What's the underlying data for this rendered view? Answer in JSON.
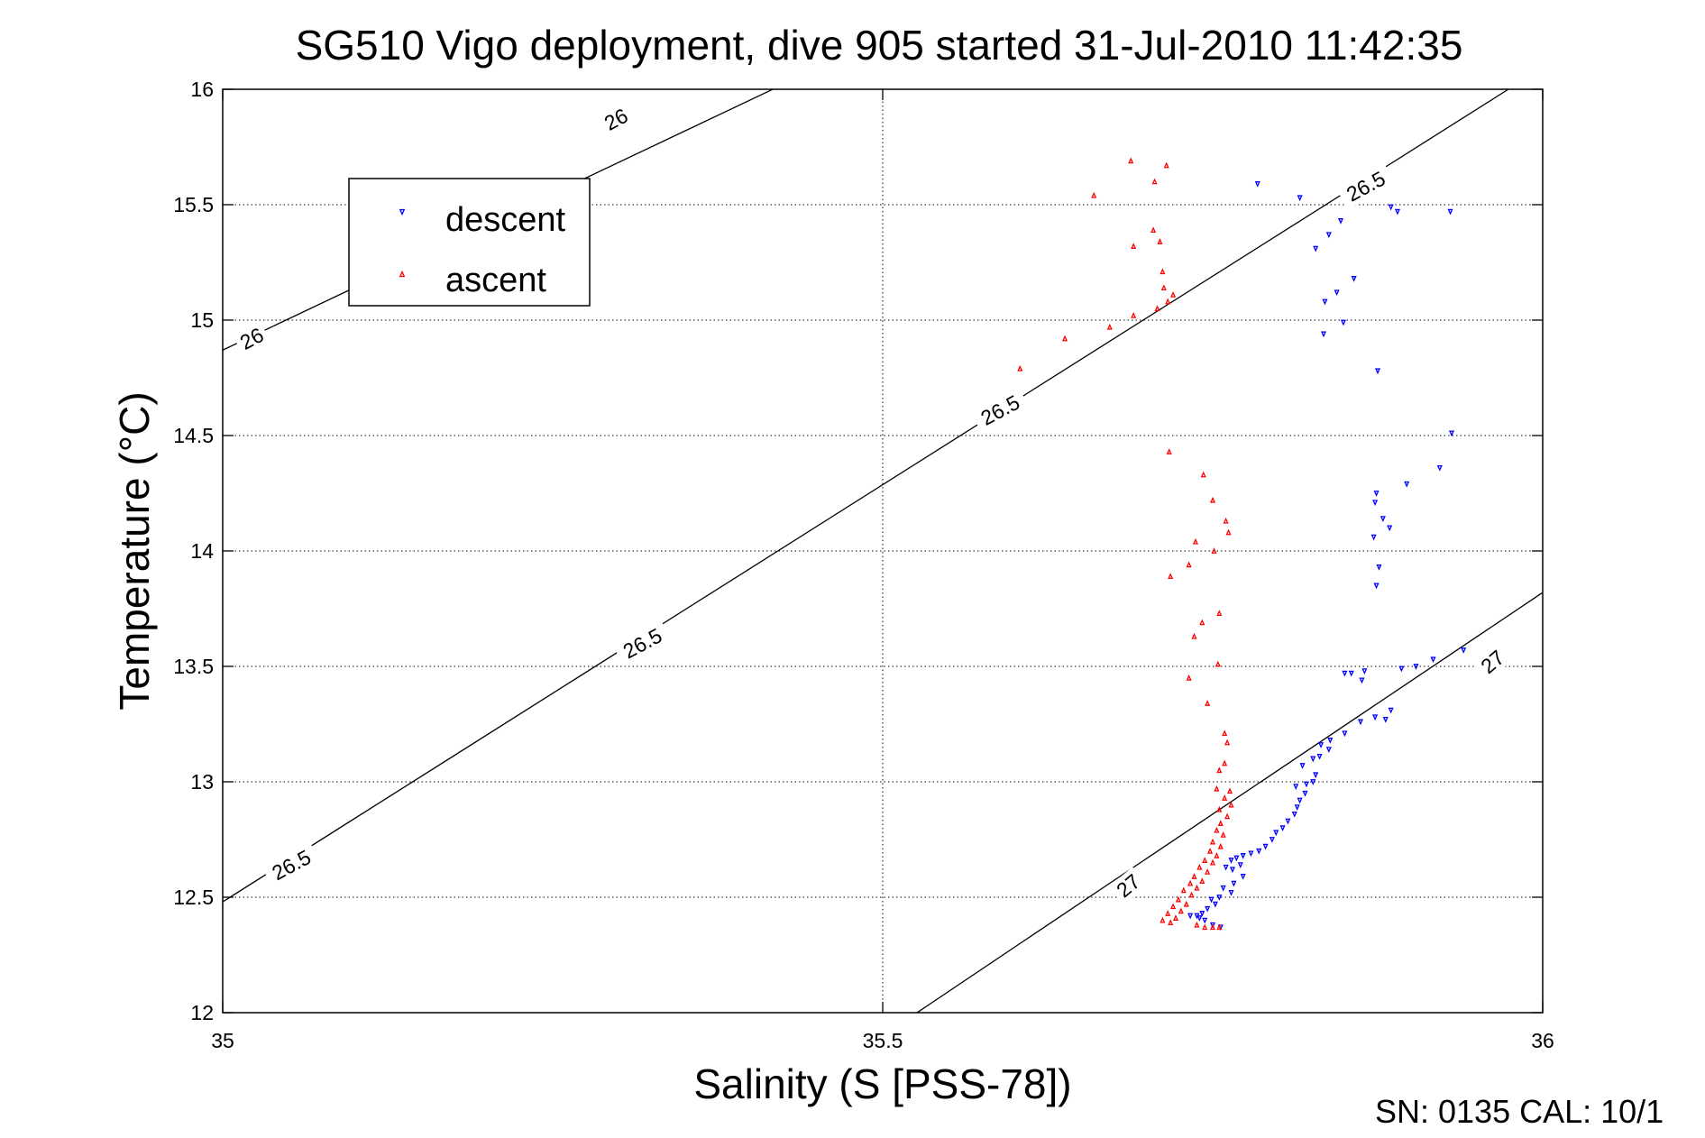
{
  "chart_data": {
    "type": "scatter",
    "title": "SG510 Vigo deployment, dive 905 started 31-Jul-2010 11:42:35",
    "xlabel": "Salinity (S [PSS-78])",
    "ylabel": "Temperature (°C)",
    "xlim": [
      35,
      36
    ],
    "ylim": [
      12,
      16
    ],
    "x_ticks": [
      35,
      35.5,
      36
    ],
    "y_ticks": [
      12,
      12.5,
      13,
      13.5,
      14,
      14.5,
      15,
      15.5,
      16
    ],
    "x_tick_labels": [
      "35",
      "35.5",
      "36"
    ],
    "y_tick_labels": [
      "12",
      "12.5",
      "13",
      "13.5",
      "14",
      "14.5",
      "15",
      "15.5",
      "16"
    ],
    "grid": true,
    "legend_position": "top-left",
    "footer": "SN: 0135  CAL: 10/1",
    "colors": {
      "descent": "#0000ff",
      "ascent": "#ff0000",
      "contour": "#000000",
      "grid": "#000000"
    },
    "density_contours": [
      {
        "sigma": 26,
        "label": "26",
        "points": [
          [
            35.0,
            14.87
          ],
          [
            35.97,
            17.5
          ]
        ]
      },
      {
        "sigma": 26.5,
        "label": "26.5",
        "points": [
          [
            35.0,
            12.48
          ],
          [
            35.974,
            16.0
          ]
        ]
      },
      {
        "sigma": 27,
        "label": "27",
        "points": [
          [
            35.526,
            12.0
          ],
          [
            36.0,
            13.82
          ]
        ]
      }
    ],
    "contour_labels": [
      {
        "text": "26",
        "x": 35.298,
        "y": 15.87,
        "angle": -28
      },
      {
        "text": "26",
        "x": 35.022,
        "y": 14.92,
        "angle": -28
      },
      {
        "text": "26.5",
        "x": 35.866,
        "y": 15.58,
        "angle": -28
      },
      {
        "text": "26.5",
        "x": 35.589,
        "y": 14.61,
        "angle": -28
      },
      {
        "text": "26.5",
        "x": 35.318,
        "y": 13.6,
        "angle": -28
      },
      {
        "text": "26.5",
        "x": 35.052,
        "y": 12.64,
        "angle": -28
      },
      {
        "text": "27",
        "x": 35.962,
        "y": 13.52,
        "angle": -40
      },
      {
        "text": "27",
        "x": 35.686,
        "y": 12.55,
        "angle": -40
      }
    ],
    "series": [
      {
        "name": "descent",
        "marker": "triangle-down",
        "points": [
          [
            35.784,
            15.59
          ],
          [
            35.816,
            15.53
          ],
          [
            35.828,
            15.31
          ],
          [
            35.838,
            15.37
          ],
          [
            35.847,
            15.43
          ],
          [
            35.835,
            15.08
          ],
          [
            35.844,
            15.12
          ],
          [
            35.857,
            15.18
          ],
          [
            35.834,
            14.94
          ],
          [
            35.849,
            14.99
          ],
          [
            35.885,
            15.49
          ],
          [
            35.89,
            15.47
          ],
          [
            35.93,
            15.47
          ],
          [
            35.875,
            14.78
          ],
          [
            35.931,
            14.51
          ],
          [
            35.922,
            14.36
          ],
          [
            35.897,
            14.29
          ],
          [
            35.874,
            14.25
          ],
          [
            35.873,
            14.21
          ],
          [
            35.879,
            14.14
          ],
          [
            35.884,
            14.1
          ],
          [
            35.872,
            14.06
          ],
          [
            35.876,
            13.93
          ],
          [
            35.874,
            13.85
          ],
          [
            35.94,
            13.57
          ],
          [
            35.917,
            13.53
          ],
          [
            35.904,
            13.5
          ],
          [
            35.893,
            13.49
          ],
          [
            35.865,
            13.48
          ],
          [
            35.855,
            13.47
          ],
          [
            35.85,
            13.47
          ],
          [
            35.863,
            13.44
          ],
          [
            35.885,
            13.31
          ],
          [
            35.881,
            13.27
          ],
          [
            35.873,
            13.28
          ],
          [
            35.862,
            13.26
          ],
          [
            35.85,
            13.21
          ],
          [
            35.839,
            13.18
          ],
          [
            35.832,
            13.16
          ],
          [
            35.838,
            13.14
          ],
          [
            35.831,
            13.11
          ],
          [
            35.826,
            13.1
          ],
          [
            35.818,
            13.07
          ],
          [
            35.828,
            13.03
          ],
          [
            35.826,
            13.0
          ],
          [
            35.821,
            12.99
          ],
          [
            35.813,
            12.98
          ],
          [
            35.82,
            12.95
          ],
          [
            35.816,
            12.92
          ],
          [
            35.814,
            12.89
          ],
          [
            35.812,
            12.86
          ],
          [
            35.807,
            12.83
          ],
          [
            35.803,
            12.8
          ],
          [
            35.798,
            12.78
          ],
          [
            35.795,
            12.75
          ],
          [
            35.79,
            12.72
          ],
          [
            35.785,
            12.7
          ],
          [
            35.779,
            12.69
          ],
          [
            35.773,
            12.68
          ],
          [
            35.768,
            12.67
          ],
          [
            35.764,
            12.66
          ],
          [
            35.771,
            12.64
          ],
          [
            35.765,
            12.62
          ],
          [
            35.76,
            12.63
          ],
          [
            35.773,
            12.59
          ],
          [
            35.766,
            12.56
          ],
          [
            35.758,
            12.54
          ],
          [
            35.764,
            12.52
          ],
          [
            35.755,
            12.5
          ],
          [
            35.749,
            12.49
          ],
          [
            35.752,
            12.47
          ],
          [
            35.746,
            12.45
          ],
          [
            35.742,
            12.43
          ],
          [
            35.738,
            12.42
          ],
          [
            35.733,
            12.42
          ],
          [
            35.744,
            12.4
          ],
          [
            35.75,
            12.38
          ],
          [
            35.756,
            12.37
          ],
          [
            35.74,
            12.41
          ]
        ]
      },
      {
        "name": "ascent",
        "marker": "triangle-up",
        "points": [
          [
            35.688,
            15.69
          ],
          [
            35.715,
            15.67
          ],
          [
            35.706,
            15.6
          ],
          [
            35.66,
            15.54
          ],
          [
            35.705,
            15.39
          ],
          [
            35.71,
            15.34
          ],
          [
            35.69,
            15.32
          ],
          [
            35.712,
            15.21
          ],
          [
            35.713,
            15.14
          ],
          [
            35.72,
            15.11
          ],
          [
            35.716,
            15.08
          ],
          [
            35.708,
            15.05
          ],
          [
            35.69,
            15.02
          ],
          [
            35.672,
            14.97
          ],
          [
            35.638,
            14.92
          ],
          [
            35.604,
            14.79
          ],
          [
            35.717,
            14.43
          ],
          [
            35.743,
            14.33
          ],
          [
            35.75,
            14.22
          ],
          [
            35.76,
            14.13
          ],
          [
            35.762,
            14.08
          ],
          [
            35.737,
            14.04
          ],
          [
            35.751,
            14.0
          ],
          [
            35.732,
            13.94
          ],
          [
            35.718,
            13.89
          ],
          [
            35.755,
            13.73
          ],
          [
            35.742,
            13.69
          ],
          [
            35.736,
            13.63
          ],
          [
            35.754,
            13.51
          ],
          [
            35.732,
            13.45
          ],
          [
            35.746,
            13.34
          ],
          [
            35.759,
            13.21
          ],
          [
            35.761,
            13.17
          ],
          [
            35.759,
            13.08
          ],
          [
            35.755,
            13.05
          ],
          [
            35.753,
            12.97
          ],
          [
            35.763,
            12.96
          ],
          [
            35.759,
            12.93
          ],
          [
            35.764,
            12.9
          ],
          [
            35.755,
            12.88
          ],
          [
            35.761,
            12.85
          ],
          [
            35.756,
            12.82
          ],
          [
            35.753,
            12.79
          ],
          [
            35.758,
            12.77
          ],
          [
            35.75,
            12.74
          ],
          [
            35.756,
            12.72
          ],
          [
            35.748,
            12.7
          ],
          [
            35.753,
            12.68
          ],
          [
            35.744,
            12.66
          ],
          [
            35.75,
            12.65
          ],
          [
            35.74,
            12.63
          ],
          [
            35.746,
            12.61
          ],
          [
            35.736,
            12.59
          ],
          [
            35.742,
            12.57
          ],
          [
            35.733,
            12.56
          ],
          [
            35.738,
            12.54
          ],
          [
            35.728,
            12.53
          ],
          [
            35.734,
            12.51
          ],
          [
            35.724,
            12.49
          ],
          [
            35.73,
            12.47
          ],
          [
            35.72,
            12.46
          ],
          [
            35.726,
            12.44
          ],
          [
            35.716,
            12.43
          ],
          [
            35.722,
            12.41
          ],
          [
            35.712,
            12.4
          ],
          [
            35.718,
            12.39
          ],
          [
            35.738,
            12.38
          ],
          [
            35.744,
            12.37
          ],
          [
            35.75,
            12.37
          ],
          [
            35.755,
            12.37
          ]
        ]
      }
    ]
  }
}
